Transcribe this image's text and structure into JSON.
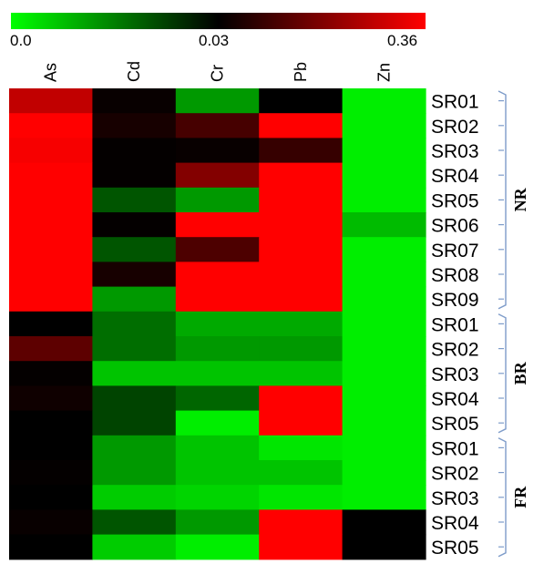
{
  "chart_data": {
    "type": "heatmap",
    "title": "",
    "colorbar": {
      "ticks": [
        "0.0",
        "0.03",
        "0.36"
      ],
      "colors": [
        "#00ff00",
        "#000000",
        "#ff0000"
      ]
    },
    "columns": [
      "As",
      "Cd",
      "Cr",
      "Pb",
      "Zn"
    ],
    "rows": [
      "SR01",
      "SR02",
      "SR03",
      "SR04",
      "SR05",
      "SR06",
      "SR07",
      "SR08",
      "SR09",
      "SR01",
      "SR02",
      "SR03",
      "SR04",
      "SR05",
      "SR01",
      "SR02",
      "SR03",
      "SR04",
      "SR05"
    ],
    "groups": [
      {
        "label": "NR",
        "rows": 9
      },
      {
        "label": "BR",
        "rows": 5
      },
      {
        "label": "FR",
        "rows": 5
      }
    ],
    "values": [
      [
        0.28,
        0.04,
        0.012,
        0.03,
        0.002
      ],
      [
        0.36,
        0.06,
        0.12,
        0.36,
        0.002
      ],
      [
        0.35,
        0.035,
        0.04,
        0.1,
        0.002
      ],
      [
        0.36,
        0.035,
        0.2,
        0.36,
        0.002
      ],
      [
        0.36,
        0.02,
        0.012,
        0.36,
        0.002
      ],
      [
        0.36,
        0.035,
        0.36,
        0.36,
        0.008
      ],
      [
        0.36,
        0.02,
        0.13,
        0.36,
        0.002
      ],
      [
        0.36,
        0.06,
        0.36,
        0.36,
        0.002
      ],
      [
        0.36,
        0.012,
        0.36,
        0.36,
        0.002
      ],
      [
        0.03,
        0.017,
        0.01,
        0.01,
        0.002
      ],
      [
        0.15,
        0.017,
        0.012,
        0.012,
        0.002
      ],
      [
        0.035,
        0.007,
        0.007,
        0.007,
        0.002
      ],
      [
        0.05,
        0.022,
        0.018,
        0.36,
        0.002
      ],
      [
        0.03,
        0.022,
        0.002,
        0.36,
        0.002
      ],
      [
        0.03,
        0.012,
        0.007,
        0.003,
        0.002
      ],
      [
        0.035,
        0.012,
        0.007,
        0.007,
        0.002
      ],
      [
        0.03,
        0.006,
        0.005,
        0.003,
        0.002
      ],
      [
        0.04,
        0.02,
        0.012,
        0.36,
        0.03
      ],
      [
        0.03,
        0.006,
        0.002,
        0.36,
        0.03
      ]
    ]
  }
}
